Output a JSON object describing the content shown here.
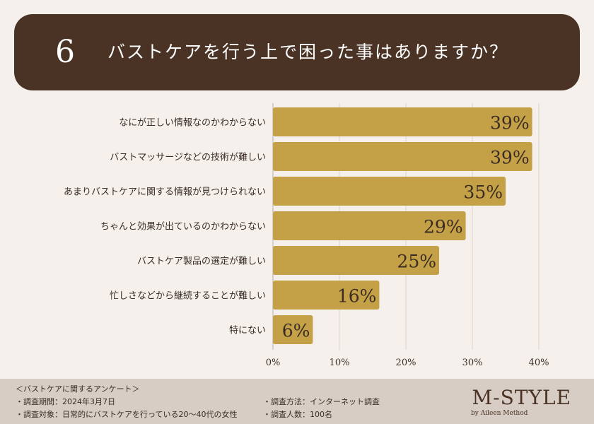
{
  "header": {
    "number": "6",
    "title": "バストケアを行う上で困った事はありますか？"
  },
  "colors": {
    "header_bg": "#4a3325",
    "bar": "#c4a146",
    "background": "#f5f0ec",
    "footer_bg": "#d8cdc4"
  },
  "chart_data": {
    "type": "bar",
    "orientation": "horizontal",
    "categories": [
      "なにが正しい情報なのかわからない",
      "バストマッサージなどの技術が難しい",
      "あまりバストケアに関する情報が見つけられない",
      "ちゃんと効果が出ているのかわからない",
      "バストケア製品の選定が難しい",
      "忙しさなどから継続することが難しい",
      "特にない"
    ],
    "values": [
      39,
      39,
      35,
      29,
      25,
      16,
      6
    ],
    "value_labels": [
      "39%",
      "39%",
      "35%",
      "29%",
      "25%",
      "16%",
      "6%"
    ],
    "xticks": [
      "0%",
      "10%",
      "20%",
      "30%",
      "40%"
    ],
    "xtick_values": [
      0,
      10,
      20,
      30,
      40
    ],
    "xlim": [
      0,
      40
    ],
    "grid": true
  },
  "footer": {
    "survey_title": "＜バストケアに関するアンケート＞",
    "period": "・調査期間：2024年3月7日",
    "target": "・調査対象：日常的にバストケアを行っている20〜40代の女性",
    "method": "・調査方法：インターネット調査",
    "count": "・調査人数：100名",
    "brand": "M-STYLE",
    "brand_sub": "by Aileen Method"
  }
}
